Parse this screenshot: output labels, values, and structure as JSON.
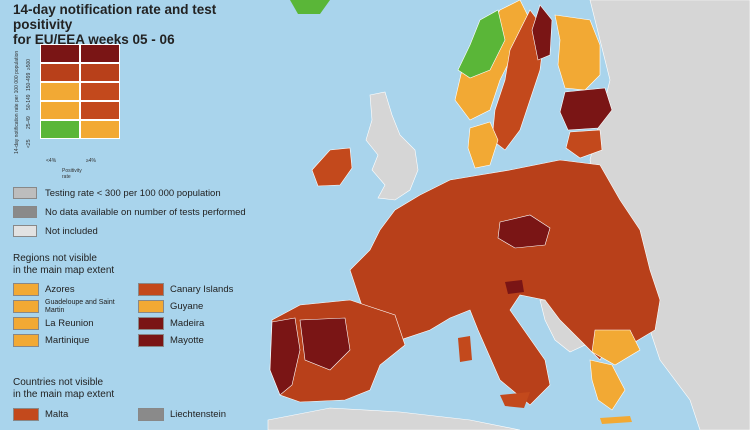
{
  "title": [
    "14-day notification rate and test positivity",
    "for EU/EEA weeks 05 - 06"
  ],
  "matrix": {
    "y_axis_label": "14-day notification rate per 100 000 population",
    "y_ticks": [
      "<25",
      "25-49",
      "50-149",
      "150-499",
      "≥500"
    ],
    "x_ticks": [
      "<4%",
      "≥4%"
    ],
    "x_axis_label": "Positivity rate",
    "cells": [
      [
        "#7a1515",
        "#7a1515"
      ],
      [
        "#b8401a",
        "#b8401a"
      ],
      [
        "#f2a934",
        "#c3491c"
      ],
      [
        "#f2a934",
        "#c3491c"
      ],
      [
        "#5ab638",
        "#f2a934"
      ]
    ]
  },
  "status_legend": [
    {
      "label": "Testing rate < 300 per 100 000 population",
      "color": "#bdbdbd"
    },
    {
      "label": "No data available on number of tests performed",
      "color": "#8a8a8a"
    },
    {
      "label": "Not included",
      "color": "#e2e2e2"
    }
  ],
  "regions_heading": [
    "Regions not visible",
    "in the main map extent"
  ],
  "regions": [
    {
      "label": "Azores",
      "color": "#f2a934"
    },
    {
      "label": "Canary Islands",
      "color": "#c3491c"
    },
    {
      "label": "Guadeloupe and Saint Martin",
      "color": "#f2a934"
    },
    {
      "label": "Guyane",
      "color": "#f2a934"
    },
    {
      "label": "La Reunion",
      "color": "#f2a934"
    },
    {
      "label": "Madeira",
      "color": "#7a1515"
    },
    {
      "label": "Martinique",
      "color": "#f2a934"
    },
    {
      "label": "Mayotte",
      "color": "#7a1515"
    }
  ],
  "countries_heading": [
    "Countries not visible",
    "in the main map extent"
  ],
  "countries": [
    {
      "label": "Malta",
      "color": "#c3491c"
    },
    {
      "label": "Liechtenstein",
      "color": "#8a8a8a"
    }
  ],
  "map_colors": {
    "sea": "#a9d4ec",
    "non_eu": "#d6d6d6",
    "dark_red": "#7a1515",
    "red": "#b8401a",
    "orange_red": "#c3491c",
    "orange": "#f2a934",
    "green": "#5ab638"
  }
}
